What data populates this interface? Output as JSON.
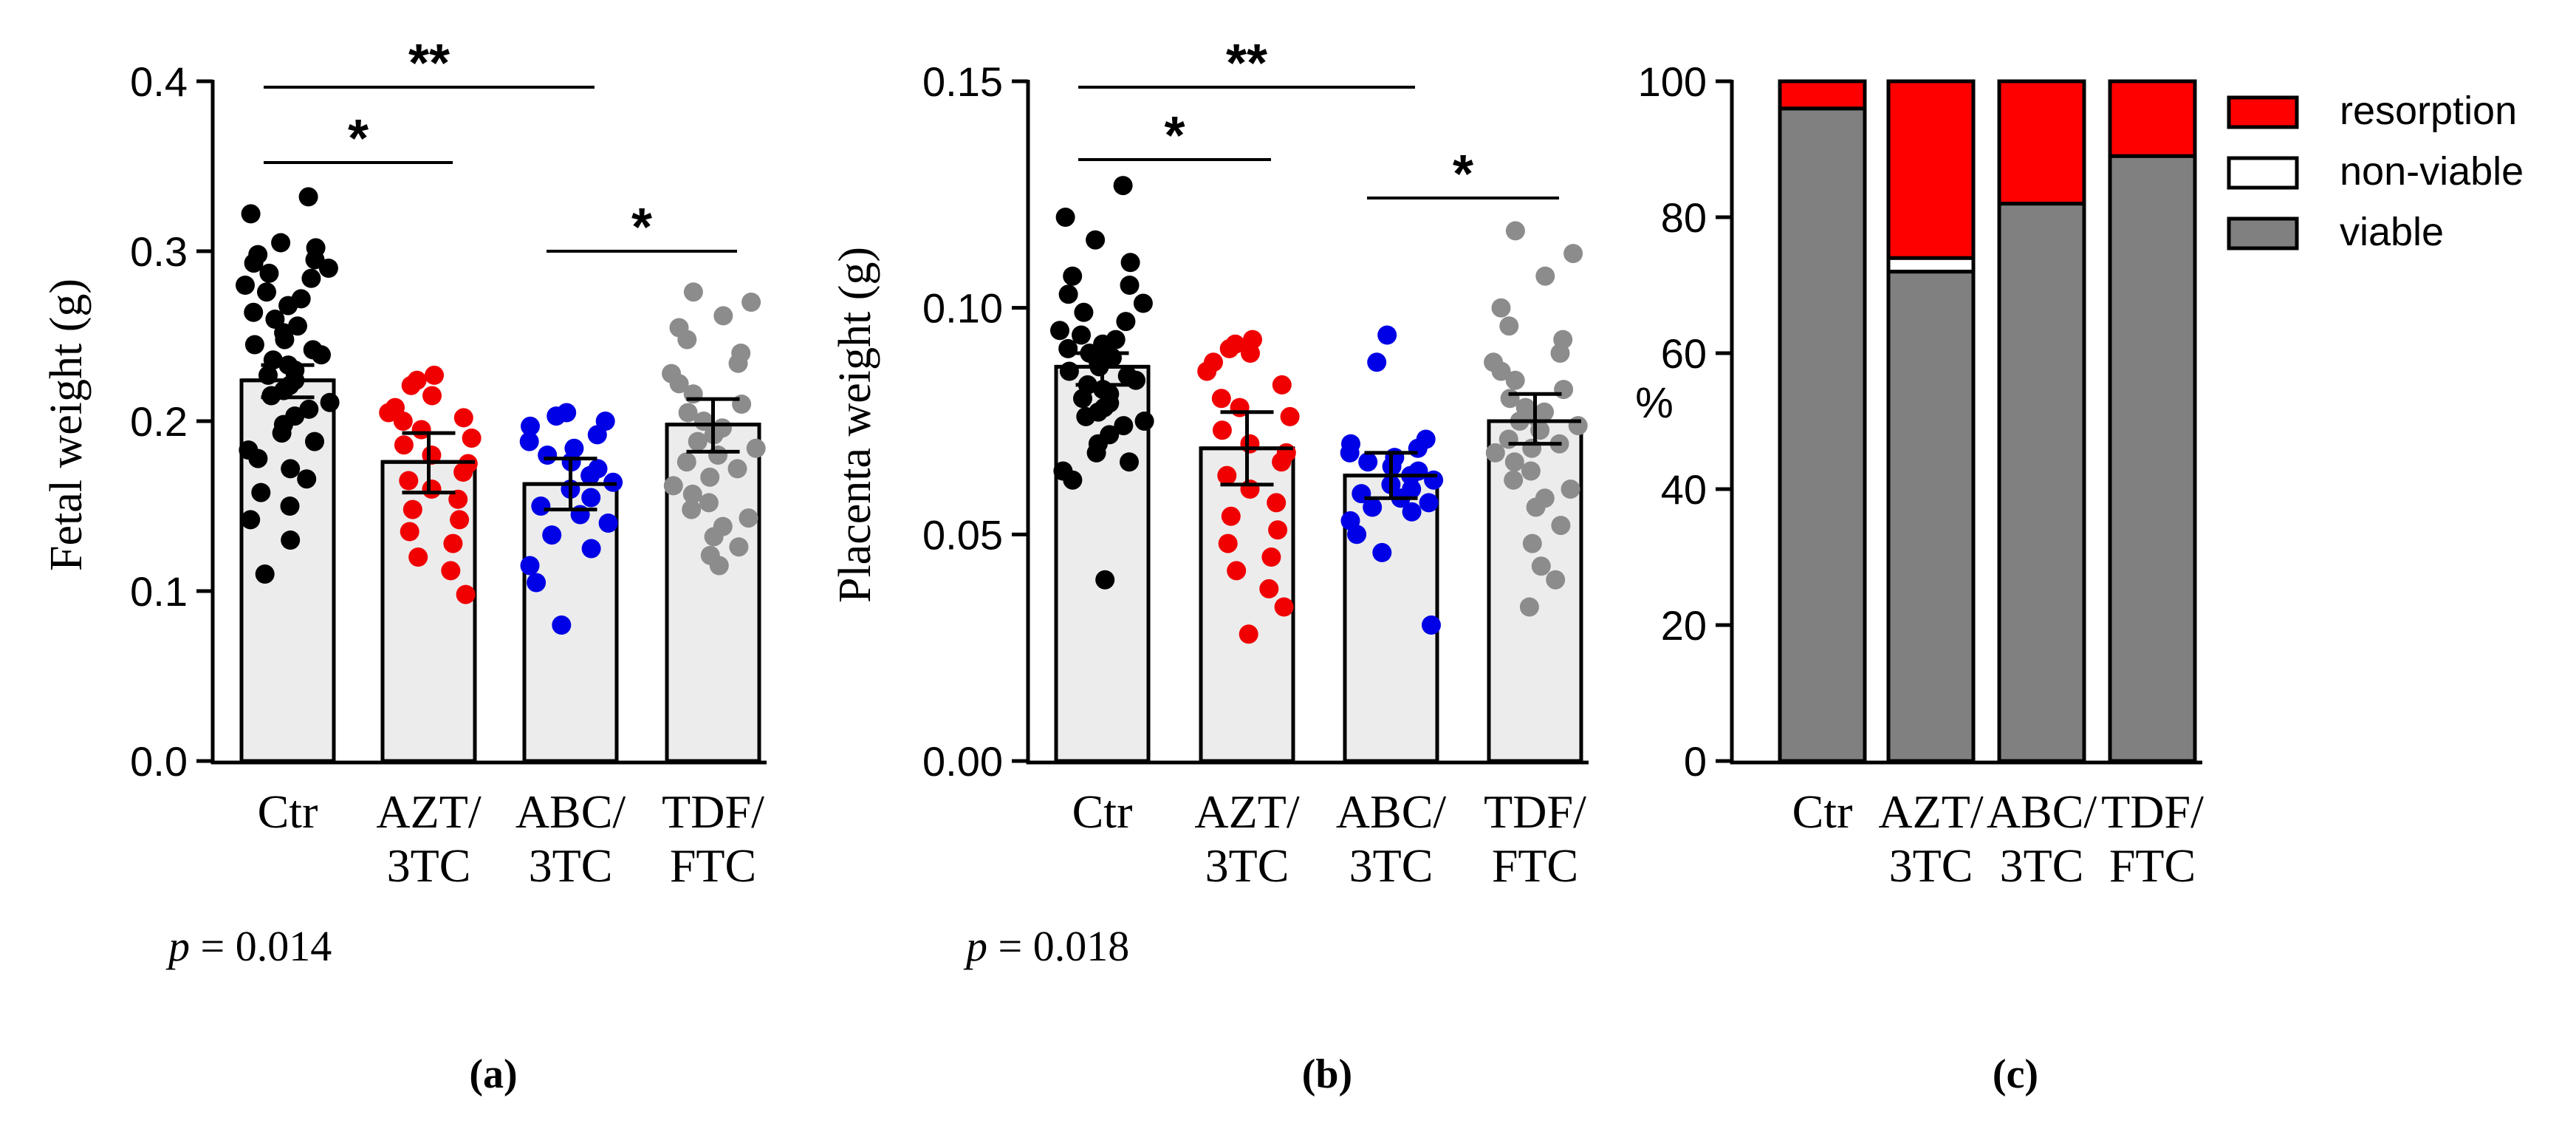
{
  "chart_data": [
    {
      "id": "a",
      "type": "bar",
      "panel_label": "(a)",
      "ylabel": "Fetal weight (g)",
      "ylim": [
        0,
        0.4
      ],
      "yticks": [
        "0.0",
        "0.1",
        "0.2",
        "0.3",
        "0.4"
      ],
      "categories": [
        "Ctr\n",
        "AZT/\n3TC",
        "ABC/\n3TC",
        "TDF/\nFTC"
      ],
      "values": [
        0.224,
        0.176,
        0.163,
        0.198
      ],
      "errors": [
        {
          "low": 0.214,
          "high": 0.233
        },
        {
          "low": 0.158,
          "high": 0.193
        },
        {
          "low": 0.148,
          "high": 0.178
        },
        {
          "low": 0.182,
          "high": 0.213
        }
      ],
      "point_colors": [
        "#000000",
        "#f00000",
        "#0000e6",
        "#8c8c8c"
      ],
      "points": [
        [
          0.332,
          0.322,
          0.305,
          0.302,
          0.298,
          0.295,
          0.293,
          0.29,
          0.287,
          0.284,
          0.28,
          0.276,
          0.272,
          0.268,
          0.264,
          0.26,
          0.256,
          0.252,
          0.248,
          0.245,
          0.242,
          0.239,
          0.236,
          0.233,
          0.23,
          0.227,
          0.224,
          0.221,
          0.218,
          0.215,
          0.211,
          0.207,
          0.203,
          0.198,
          0.193,
          0.188,
          0.183,
          0.178,
          0.172,
          0.166,
          0.158,
          0.15,
          0.142,
          0.13,
          0.11
        ],
        [
          0.227,
          0.224,
          0.221,
          0.215,
          0.208,
          0.205,
          0.202,
          0.2,
          0.195,
          0.19,
          0.186,
          0.18,
          0.175,
          0.17,
          0.165,
          0.16,
          0.154,
          0.148,
          0.142,
          0.135,
          0.128,
          0.12,
          0.112,
          0.098
        ],
        [
          0.205,
          0.203,
          0.2,
          0.197,
          0.192,
          0.188,
          0.184,
          0.18,
          0.176,
          0.172,
          0.168,
          0.164,
          0.16,
          0.155,
          0.15,
          0.145,
          0.14,
          0.133,
          0.125,
          0.115,
          0.105,
          0.08
        ],
        [
          0.276,
          0.27,
          0.262,
          0.255,
          0.248,
          0.24,
          0.234,
          0.228,
          0.222,
          0.216,
          0.21,
          0.205,
          0.2,
          0.196,
          0.192,
          0.188,
          0.184,
          0.18,
          0.176,
          0.172,
          0.167,
          0.162,
          0.157,
          0.152,
          0.148,
          0.143,
          0.138,
          0.132,
          0.126,
          0.121,
          0.115
        ]
      ],
      "significance": [
        {
          "from": 0,
          "to": 1,
          "label": "*"
        },
        {
          "from": 0,
          "to": 2,
          "label": "**"
        },
        {
          "from": 2,
          "to": 3,
          "label": "*"
        }
      ],
      "p_prefix": "p",
      "p_value": " = 0.014"
    },
    {
      "id": "b",
      "type": "bar",
      "panel_label": "(b)",
      "ylabel": "Placenta weight (g)",
      "ylim": [
        0,
        0.15
      ],
      "yticks": [
        "0.00",
        "0.05",
        "0.10",
        "0.15"
      ],
      "categories": [
        "Ctr\n",
        "AZT/\n3TC",
        "ABC/\n3TC",
        "TDF/\nFTC"
      ],
      "values": [
        0.087,
        0.069,
        0.063,
        0.075
      ],
      "errors": [
        {
          "low": 0.083,
          "high": 0.09
        },
        {
          "low": 0.061,
          "high": 0.077
        },
        {
          "low": 0.058,
          "high": 0.068
        },
        {
          "low": 0.07,
          "high": 0.081
        }
      ],
      "point_colors": [
        "#000000",
        "#f00000",
        "#0000e6",
        "#8c8c8c"
      ],
      "points": [
        [
          0.127,
          0.12,
          0.115,
          0.11,
          0.107,
          0.105,
          0.103,
          0.101,
          0.099,
          0.097,
          0.095,
          0.094,
          0.093,
          0.092,
          0.091,
          0.09,
          0.089,
          0.088,
          0.087,
          0.086,
          0.085,
          0.084,
          0.083,
          0.082,
          0.081,
          0.08,
          0.079,
          0.078,
          0.077,
          0.076,
          0.075,
          0.074,
          0.072,
          0.07,
          0.068,
          0.066,
          0.064,
          0.062,
          0.04
        ],
        [
          0.093,
          0.092,
          0.091,
          0.09,
          0.088,
          0.086,
          0.083,
          0.08,
          0.078,
          0.076,
          0.073,
          0.07,
          0.068,
          0.066,
          0.063,
          0.06,
          0.057,
          0.054,
          0.051,
          0.048,
          0.045,
          0.042,
          0.038,
          0.034,
          0.028
        ],
        [
          0.094,
          0.088,
          0.071,
          0.07,
          0.069,
          0.068,
          0.067,
          0.066,
          0.065,
          0.064,
          0.063,
          0.062,
          0.061,
          0.06,
          0.059,
          0.058,
          0.057,
          0.056,
          0.055,
          0.053,
          0.05,
          0.046,
          0.03
        ],
        [
          0.117,
          0.112,
          0.107,
          0.1,
          0.096,
          0.093,
          0.09,
          0.088,
          0.086,
          0.084,
          0.082,
          0.08,
          0.078,
          0.077,
          0.076,
          0.075,
          0.074,
          0.073,
          0.071,
          0.07,
          0.069,
          0.068,
          0.066,
          0.064,
          0.062,
          0.06,
          0.058,
          0.056,
          0.052,
          0.048,
          0.043,
          0.04,
          0.034
        ]
      ],
      "significance": [
        {
          "from": 0,
          "to": 1,
          "label": "*"
        },
        {
          "from": 0,
          "to": 2,
          "label": "**"
        },
        {
          "from": 2,
          "to": 3,
          "label": "*"
        }
      ],
      "p_prefix": "p",
      "p_value": " = 0.018"
    },
    {
      "id": "c",
      "type": "bar",
      "stacked": true,
      "panel_label": "(c)",
      "ylabel": "%",
      "ylim": [
        0,
        100
      ],
      "yticks": [
        "0",
        "20",
        "40",
        "60",
        "80",
        "100"
      ],
      "categories": [
        "Ctr\n",
        "AZT/\n3TC",
        "ABC/\n3TC",
        "TDF/\nFTC"
      ],
      "series": [
        {
          "name": "viable",
          "color": "#808080",
          "values": [
            96,
            72,
            82,
            89
          ]
        },
        {
          "name": "non-viable",
          "color": "#ffffff",
          "values": [
            0,
            2,
            0,
            0
          ]
        },
        {
          "name": "resorption",
          "color": "#ff0000",
          "values": [
            4,
            26,
            18,
            11
          ]
        }
      ],
      "legend": [
        "resorption",
        "non-viable",
        "viable"
      ],
      "legend_position": "top-right"
    }
  ]
}
